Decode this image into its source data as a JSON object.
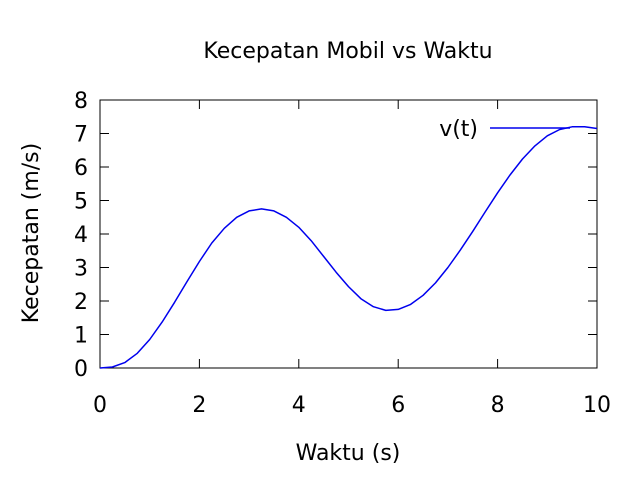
{
  "chart_data": {
    "type": "line",
    "title": "Kecepatan Mobil vs Waktu",
    "xlabel": "Waktu (s)",
    "ylabel": "Kecepatan (m/s)",
    "xlim": [
      0,
      10
    ],
    "ylim": [
      0,
      8
    ],
    "xticks": [
      "0",
      "2",
      "4",
      "6",
      "8",
      "10"
    ],
    "yticks": [
      "0",
      "1",
      "2",
      "3",
      "4",
      "5",
      "6",
      "7",
      "8"
    ],
    "grid": false,
    "legend_position": "top-right",
    "series": [
      {
        "name": "v(t)",
        "color": "#0000ee",
        "x": [
          0,
          0.25,
          0.5,
          0.75,
          1,
          1.25,
          1.5,
          1.75,
          2,
          2.25,
          2.5,
          2.75,
          3,
          3.25,
          3.5,
          3.75,
          4,
          4.25,
          4.5,
          4.75,
          5,
          5.25,
          5.5,
          5.75,
          6,
          6.25,
          6.5,
          6.75,
          7,
          7.25,
          7.5,
          7.75,
          8,
          8.25,
          8.5,
          8.75,
          9,
          9.25,
          9.5,
          9.75,
          10
        ],
        "values": [
          0,
          0.03,
          0.16,
          0.44,
          0.85,
          1.37,
          1.96,
          2.58,
          3.18,
          3.73,
          4.17,
          4.5,
          4.69,
          4.75,
          4.69,
          4.5,
          4.2,
          3.8,
          3.33,
          2.86,
          2.43,
          2.07,
          1.83,
          1.72,
          1.75,
          1.9,
          2.17,
          2.54,
          3.0,
          3.52,
          4.08,
          4.66,
          5.23,
          5.76,
          6.24,
          6.63,
          6.93,
          7.12,
          7.2,
          7.2,
          7.15
        ]
      }
    ]
  }
}
